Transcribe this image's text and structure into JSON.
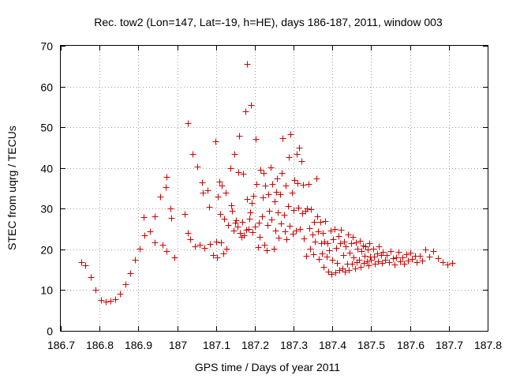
{
  "chart_data": {
    "type": "scatter",
    "title": "Rec. tow2 (Lon=147, Lat=-19, h=HE), days 186-187, 2011, window 003",
    "xlabel": "GPS time / Days of year 2011",
    "ylabel": "STEC from uqrg / TECUs",
    "xlim": [
      186.7,
      187.8
    ],
    "ylim": [
      0,
      70
    ],
    "xticks": [
      "186.7",
      "186.8",
      "186.9",
      "187",
      "187.1",
      "187.2",
      "187.3",
      "187.4",
      "187.5",
      "187.6",
      "187.7",
      "187.8"
    ],
    "yticks": [
      "0",
      "10",
      "20",
      "30",
      "40",
      "50",
      "60",
      "70"
    ],
    "grid": true,
    "marker": "plus",
    "color": "#cc0000",
    "series": [
      {
        "name": "tow2",
        "points": [
          [
            186.752,
            16.8
          ],
          [
            186.764,
            16.0
          ],
          [
            186.778,
            13.2
          ],
          [
            186.79,
            10.0
          ],
          [
            186.803,
            7.5
          ],
          [
            186.815,
            7.2
          ],
          [
            186.828,
            7.3
          ],
          [
            186.84,
            7.8
          ],
          [
            186.853,
            9.2
          ],
          [
            186.866,
            11.5
          ],
          [
            186.878,
            14.2
          ],
          [
            186.891,
            17.5
          ],
          [
            186.904,
            20.2
          ],
          [
            186.916,
            23.4
          ],
          [
            186.929,
            24.5
          ],
          [
            186.941,
            28.2
          ],
          [
            186.914,
            28.0
          ],
          [
            186.941,
            21.7
          ],
          [
            186.957,
            33.0
          ],
          [
            186.971,
            35.2
          ],
          [
            186.973,
            37.9
          ],
          [
            186.982,
            30.0
          ],
          [
            186.985,
            27.7
          ],
          [
            186.993,
            18.1
          ],
          [
            186.962,
            21.2
          ],
          [
            186.972,
            19.5
          ],
          [
            187.02,
            28.7
          ],
          [
            187.028,
            24.0
          ],
          [
            187.033,
            22.5
          ],
          [
            187.027,
            51.0
          ],
          [
            187.04,
            43.5
          ],
          [
            187.045,
            20.8
          ],
          [
            187.052,
            40.3
          ],
          [
            187.058,
            21.2
          ],
          [
            187.063,
            36.5
          ],
          [
            187.067,
            34.0
          ],
          [
            187.07,
            20.4
          ],
          [
            187.079,
            34.5
          ],
          [
            187.082,
            30.4
          ],
          [
            187.085,
            21.3
          ],
          [
            187.093,
            18.7
          ],
          [
            187.098,
            46.5
          ],
          [
            187.1,
            22.0
          ],
          [
            187.102,
            18.1
          ],
          [
            187.105,
            33.0
          ],
          [
            187.108,
            36.6
          ],
          [
            187.11,
            28.7
          ],
          [
            187.112,
            21.7
          ],
          [
            187.115,
            35.6
          ],
          [
            187.118,
            19.0
          ],
          [
            187.121,
            27.5
          ],
          [
            187.125,
            34.0
          ],
          [
            187.128,
            20.2
          ],
          [
            187.132,
            26.0
          ],
          [
            187.138,
            40.0
          ],
          [
            187.14,
            30.8
          ],
          [
            187.142,
            29.4
          ],
          [
            187.145,
            24.7
          ],
          [
            187.148,
            43.5
          ],
          [
            187.15,
            26.5
          ],
          [
            187.152,
            27.2
          ],
          [
            187.155,
            25.5
          ],
          [
            187.158,
            39.0
          ],
          [
            187.16,
            47.8
          ],
          [
            187.162,
            24.0
          ],
          [
            187.165,
            23.1
          ],
          [
            187.168,
            26.8
          ],
          [
            187.17,
            38.5
          ],
          [
            187.172,
            23.5
          ],
          [
            187.175,
            54.0
          ],
          [
            187.177,
            24.8
          ],
          [
            187.179,
            65.5
          ],
          [
            187.18,
            32.3
          ],
          [
            187.183,
            25.0
          ],
          [
            187.185,
            27.5
          ],
          [
            187.187,
            29.0
          ],
          [
            187.19,
            55.5
          ],
          [
            187.192,
            31.5
          ],
          [
            187.195,
            24.2
          ],
          [
            187.197,
            33.1
          ],
          [
            187.2,
            25.6
          ],
          [
            187.203,
            47.2
          ],
          [
            187.205,
            36.0
          ],
          [
            187.208,
            20.5
          ],
          [
            187.21,
            26.5
          ],
          [
            187.212,
            23.0
          ],
          [
            187.215,
            39.5
          ],
          [
            187.218,
            28.2
          ],
          [
            187.22,
            32.8
          ],
          [
            187.222,
            38.8
          ],
          [
            187.225,
            21.1
          ],
          [
            187.227,
            35.7
          ],
          [
            187.23,
            19.8
          ],
          [
            187.232,
            26.0
          ],
          [
            187.235,
            33.5
          ],
          [
            187.237,
            29.5
          ],
          [
            187.24,
            40.1
          ],
          [
            187.242,
            27.3
          ],
          [
            187.245,
            36.0
          ],
          [
            187.248,
            20.2
          ],
          [
            187.25,
            31.8
          ],
          [
            187.253,
            24.7
          ],
          [
            187.255,
            34.2
          ],
          [
            187.258,
            37.5
          ],
          [
            187.26,
            29.1
          ],
          [
            187.262,
            22.8
          ],
          [
            187.265,
            33.5
          ],
          [
            187.268,
            26.3
          ],
          [
            187.27,
            38.7
          ],
          [
            187.272,
            47.3
          ],
          [
            187.275,
            28.6
          ],
          [
            187.278,
            24.5
          ],
          [
            187.28,
            35.6
          ],
          [
            187.282,
            22.5
          ],
          [
            187.285,
            30.7
          ],
          [
            187.288,
            42.7
          ],
          [
            187.29,
            25.8
          ],
          [
            187.292,
            48.3
          ],
          [
            187.295,
            34.0
          ],
          [
            187.298,
            23.8
          ],
          [
            187.3,
            29.6
          ],
          [
            187.302,
            37.0
          ],
          [
            187.305,
            24.6
          ],
          [
            187.307,
            43.5
          ],
          [
            187.31,
            36.2
          ],
          [
            187.312,
            30.3
          ],
          [
            187.315,
            45.0
          ],
          [
            187.317,
            25.0
          ],
          [
            187.32,
            41.7
          ],
          [
            187.322,
            28.8
          ],
          [
            187.325,
            35.8
          ],
          [
            187.327,
            22.7
          ],
          [
            187.33,
            29.5
          ],
          [
            187.332,
            18.5
          ],
          [
            187.335,
            30.0
          ],
          [
            187.338,
            36.0
          ],
          [
            187.34,
            25.2
          ],
          [
            187.342,
            20.1
          ],
          [
            187.345,
            29.8
          ],
          [
            187.348,
            23.7
          ],
          [
            187.35,
            18.9
          ],
          [
            187.352,
            26.8
          ],
          [
            187.355,
            22.0
          ],
          [
            187.358,
            37.5
          ],
          [
            187.36,
            28.2
          ],
          [
            187.362,
            24.5
          ],
          [
            187.365,
            17.6
          ],
          [
            187.368,
            26.8
          ],
          [
            187.37,
            21.5
          ],
          [
            187.372,
            19.0
          ],
          [
            187.375,
            24.0
          ],
          [
            187.378,
            15.8
          ],
          [
            187.38,
            22.0
          ],
          [
            187.382,
            27.0
          ],
          [
            187.385,
            18.3
          ],
          [
            187.388,
            21.6
          ],
          [
            187.39,
            14.6
          ],
          [
            187.392,
            19.7
          ],
          [
            187.395,
            24.7
          ],
          [
            187.398,
            14.0
          ],
          [
            187.4,
            17.4
          ],
          [
            187.402,
            22.5
          ],
          [
            187.405,
            25.0
          ],
          [
            187.408,
            14.4
          ],
          [
            187.41,
            20.4
          ],
          [
            187.412,
            16.6
          ],
          [
            187.415,
            23.3
          ],
          [
            187.418,
            14.9
          ],
          [
            187.42,
            21.6
          ],
          [
            187.422,
            24.8
          ],
          [
            187.425,
            15.3
          ],
          [
            187.428,
            18.7
          ],
          [
            187.43,
            22.0
          ],
          [
            187.432,
            14.5
          ],
          [
            187.435,
            20.8
          ],
          [
            187.438,
            16.5
          ],
          [
            187.44,
            23.6
          ],
          [
            187.442,
            15.0
          ],
          [
            187.445,
            19.2
          ],
          [
            187.448,
            21.5
          ],
          [
            187.45,
            16.4
          ],
          [
            187.452,
            23.0
          ],
          [
            187.455,
            18.0
          ],
          [
            187.458,
            15.4
          ],
          [
            187.46,
            21.8
          ],
          [
            187.462,
            16.9
          ],
          [
            187.465,
            20.2
          ],
          [
            187.468,
            17.4
          ],
          [
            187.47,
            22.2
          ],
          [
            187.472,
            15.8
          ],
          [
            187.475,
            19.5
          ],
          [
            187.478,
            21.0
          ],
          [
            187.48,
            16.7
          ],
          [
            187.482,
            18.5
          ],
          [
            187.485,
            20.8
          ],
          [
            187.488,
            17.0
          ],
          [
            187.49,
            19.9
          ],
          [
            187.492,
            16.0
          ],
          [
            187.495,
            21.5
          ],
          [
            187.498,
            18.2
          ],
          [
            187.5,
            17.5
          ],
          [
            187.505,
            20.2
          ],
          [
            187.508,
            18.3
          ],
          [
            187.51,
            16.5
          ],
          [
            187.515,
            19.0
          ],
          [
            187.518,
            17.0
          ],
          [
            187.52,
            20.8
          ],
          [
            187.525,
            18.6
          ],
          [
            187.528,
            16.6
          ],
          [
            187.53,
            19.3
          ],
          [
            187.535,
            17.4
          ],
          [
            187.54,
            18.6
          ],
          [
            187.545,
            16.8
          ],
          [
            187.55,
            19.6
          ],
          [
            187.555,
            17.8
          ],
          [
            187.56,
            16.2
          ],
          [
            187.565,
            18.0
          ],
          [
            187.57,
            19.4
          ],
          [
            187.575,
            17.0
          ],
          [
            187.58,
            18.1
          ],
          [
            187.585,
            16.5
          ],
          [
            187.59,
            18.8
          ],
          [
            187.595,
            17.3
          ],
          [
            187.6,
            19.2
          ],
          [
            187.605,
            17.6
          ],
          [
            187.612,
            18.4
          ],
          [
            187.618,
            16.9
          ],
          [
            187.625,
            18.5
          ],
          [
            187.632,
            17.2
          ],
          [
            187.64,
            20.0
          ],
          [
            187.65,
            18.2
          ],
          [
            187.66,
            19.6
          ],
          [
            187.672,
            17.8
          ],
          [
            187.685,
            16.8
          ],
          [
            187.697,
            16.2
          ],
          [
            187.708,
            16.6
          ]
        ]
      }
    ]
  }
}
